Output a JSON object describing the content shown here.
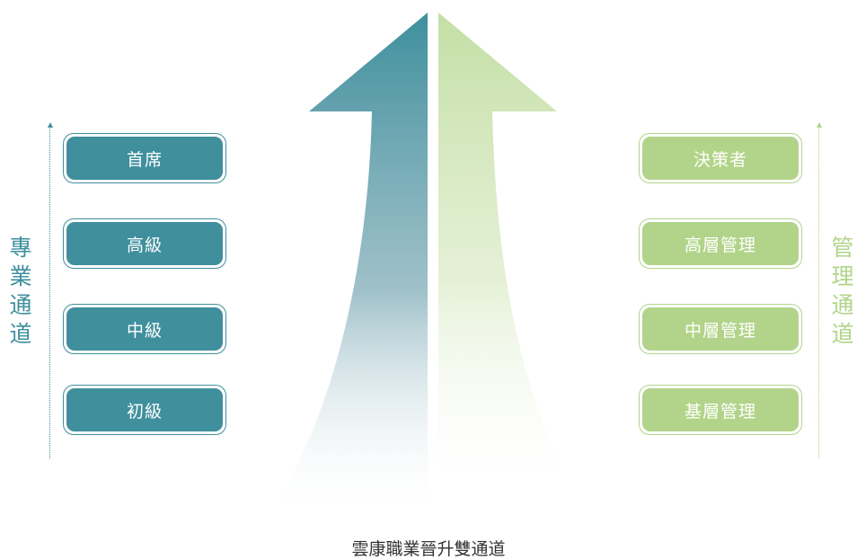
{
  "diagram": {
    "caption": "雲康職業晉升雙通道",
    "professional_track": {
      "label_chars": [
        "專",
        "業",
        "通",
        "道"
      ],
      "levels": [
        "首席",
        "高級",
        "中級",
        "初級"
      ],
      "color": "#3f8f9d"
    },
    "management_track": {
      "label_chars": [
        "管",
        "理",
        "通",
        "道"
      ],
      "levels": [
        "決策者",
        "高層管理",
        "中層管理",
        "基層管理"
      ],
      "color": "#b2d48a"
    }
  }
}
